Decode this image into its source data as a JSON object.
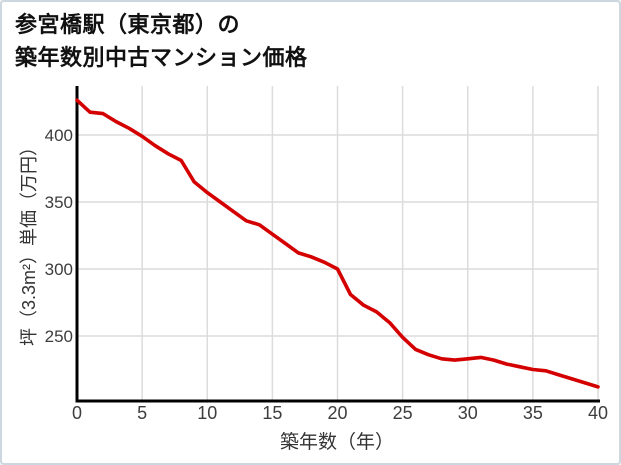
{
  "title": {
    "line1": "参宮橋駅（東京都）の",
    "line2": "築年数別中古マンション価格"
  },
  "chart_data": {
    "type": "line",
    "title": "参宮橋駅（東京都）の築年数別中古マンション価格",
    "xlabel": "築年数（年）",
    "ylabel": "坪（3.3m²）単価（万円）",
    "x": [
      0,
      1,
      2,
      3,
      4,
      5,
      6,
      7,
      8,
      9,
      10,
      11,
      12,
      13,
      14,
      15,
      16,
      17,
      18,
      19,
      20,
      21,
      22,
      23,
      24,
      25,
      26,
      27,
      28,
      29,
      30,
      31,
      32,
      33,
      34,
      35,
      36,
      37,
      38,
      39,
      40
    ],
    "series": [
      {
        "name": "坪単価（万円）",
        "values": [
          426,
          417,
          416,
          410,
          405,
          399,
          392,
          386,
          381,
          365,
          357,
          350,
          343,
          336,
          333,
          326,
          319,
          312,
          309,
          305,
          300,
          281,
          273,
          268,
          260,
          249,
          240,
          236,
          233,
          232,
          233,
          234,
          232,
          229,
          227,
          225,
          224,
          221,
          218,
          215,
          212
        ]
      }
    ],
    "xlim": [
      0,
      40
    ],
    "ylim": [
      201,
      434
    ],
    "xticks": [
      0,
      5,
      10,
      15,
      20,
      25,
      30,
      35,
      40
    ],
    "yticks": [
      250,
      300,
      350,
      400
    ],
    "grid": true,
    "legend": "none",
    "colors": {
      "line": "#d40000",
      "grid": "#dcdcdc",
      "axis": "#000000",
      "tick_text": "#3d3d3d",
      "border": "#ccd7df",
      "background": "#ffffff"
    }
  }
}
